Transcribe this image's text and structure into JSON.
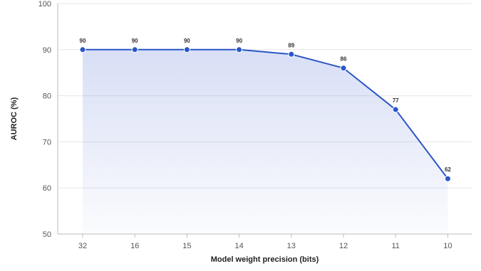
{
  "chart_data": {
    "type": "line",
    "title": "",
    "xlabel": "Model weight precision (bits)",
    "ylabel": "AUROC (%)",
    "categories": [
      "32",
      "16",
      "15",
      "14",
      "13",
      "12",
      "11",
      "10"
    ],
    "series": [
      {
        "values": [
          90,
          90,
          90,
          90,
          89,
          86,
          77,
          62
        ],
        "data_labels": [
          "90",
          "90",
          "90",
          "90",
          "89",
          "86",
          "77",
          "62"
        ],
        "color": "#2a56c6"
      }
    ],
    "ylim": [
      50,
      100
    ],
    "yticks": [
      "50",
      "60",
      "70",
      "80",
      "90",
      "100"
    ],
    "grid": true,
    "area_fill": true,
    "fill_color": "#3b5fd0"
  }
}
